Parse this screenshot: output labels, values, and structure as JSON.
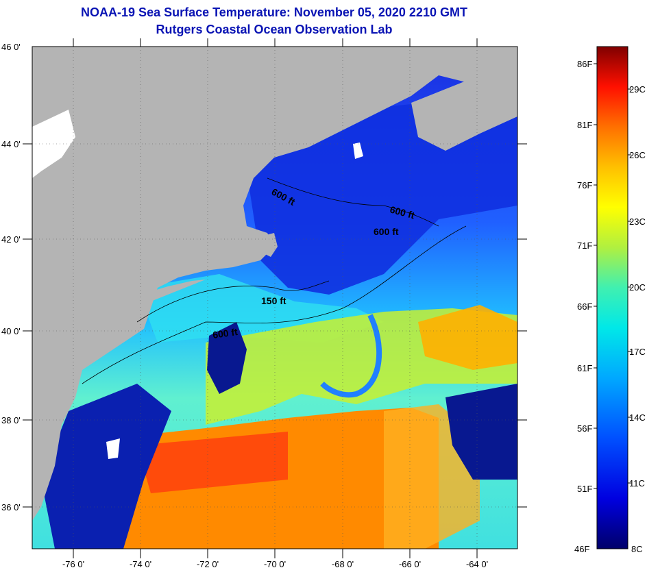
{
  "header": {
    "title": "NOAA-19 Sea Surface Temperature:  November 05, 2020 2210 GMT",
    "subtitle": "Rutgers Coastal Ocean Observation Lab"
  },
  "axes": {
    "lat_labels": [
      "46 0'",
      "44 0'",
      "42 0'",
      "40 0'",
      "38 0'",
      "36 0'"
    ],
    "lon_labels": [
      "-76 0'",
      "-74 0'",
      "-72 0'",
      "-70 0'",
      "-68 0'",
      "-66 0'",
      "-64 0'"
    ]
  },
  "contours": {
    "a": "600 ft",
    "b": "600 ft",
    "c": "600 ft",
    "d": "150 ft",
    "e": "600 ft"
  },
  "colorbar": {
    "fahrenheit": [
      "86F",
      "81F",
      "76F",
      "71F",
      "66F",
      "61F",
      "56F",
      "51F",
      "46F"
    ],
    "celsius": [
      "29C",
      "26C",
      "23C",
      "20C",
      "17C",
      "14C",
      "11C",
      "8C"
    ]
  },
  "colors": {
    "land": "#b4b4b4",
    "cloud": "#ffffff",
    "cold": "#0a14a0",
    "warm": "#ff7800"
  }
}
